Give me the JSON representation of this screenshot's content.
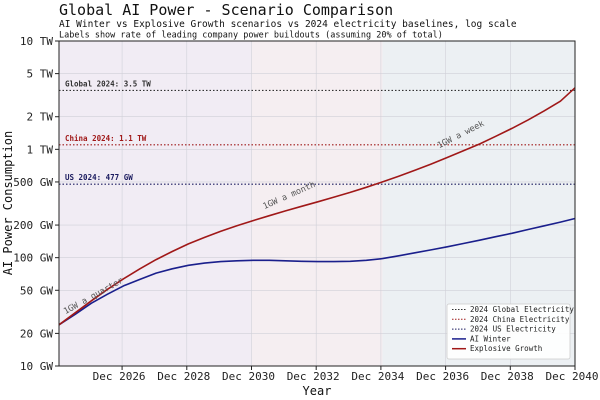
{
  "chart_data": {
    "type": "line",
    "title": "Global AI Power - Scenario Comparison",
    "subtitle": "AI Winter vs Explosive Growth scenarios vs 2024 electricity baselines, log scale",
    "subtitle2": "Labels show rate of leading company power buildouts (assuming 20% of total)",
    "xlabel": "Year",
    "ylabel": "AI Power Consumption",
    "yscale": "log",
    "ylim_gw": [
      10,
      10000
    ],
    "xlim": [
      2025.0,
      2040.95
    ],
    "yticks": [
      {
        "v": 10,
        "label": "10 GW"
      },
      {
        "v": 20,
        "label": "20 GW"
      },
      {
        "v": 50,
        "label": "50 GW"
      },
      {
        "v": 100,
        "label": "100 GW"
      },
      {
        "v": 200,
        "label": "200 GW"
      },
      {
        "v": 500,
        "label": "500 GW"
      },
      {
        "v": 1000,
        "label": "1 TW"
      },
      {
        "v": 2000,
        "label": "2 TW"
      },
      {
        "v": 5000,
        "label": "5 TW"
      },
      {
        "v": 10000,
        "label": "10 TW"
      }
    ],
    "xticks": [
      {
        "v": 2026.95,
        "label": "Dec 2026"
      },
      {
        "v": 2028.95,
        "label": "Dec 2028"
      },
      {
        "v": 2030.95,
        "label": "Dec 2030"
      },
      {
        "v": 2032.95,
        "label": "Dec 2032"
      },
      {
        "v": 2034.95,
        "label": "Dec 2034"
      },
      {
        "v": 2036.95,
        "label": "Dec 2036"
      },
      {
        "v": 2038.95,
        "label": "Dec 2038"
      },
      {
        "v": 2040.95,
        "label": "Dec 2040"
      }
    ],
    "bands": [
      {
        "from": 2025.0,
        "to": 2030.95,
        "color": "#f1ecf4"
      },
      {
        "from": 2030.95,
        "to": 2035.0,
        "color": "#f5eef1"
      },
      {
        "from": 2035.0,
        "to": 2040.95,
        "color": "#ecf0f3"
      }
    ],
    "reference_lines": [
      {
        "name": "2024 Global Electricity",
        "label": "Global 2024: 3.5 TW",
        "value": 3500,
        "color": "#333333"
      },
      {
        "name": "2024 China Electricity",
        "label": "China 2024: 1.1 TW",
        "value": 1100,
        "color": "#a01818"
      },
      {
        "name": "2024 US Electricity",
        "label": "US 2024: 477 GW",
        "value": 477,
        "color": "#1a1a5e"
      }
    ],
    "series": [
      {
        "name": "AI Winter",
        "color": "#1a1f8c",
        "x": [
          2025.0,
          2025.5,
          2026.0,
          2026.5,
          2027.0,
          2027.5,
          2028.0,
          2028.5,
          2029.0,
          2029.5,
          2030.0,
          2030.5,
          2031.0,
          2031.5,
          2032.0,
          2032.5,
          2033.0,
          2033.5,
          2034.0,
          2034.5,
          2035.0,
          2035.5,
          2036.0,
          2036.5,
          2037.0,
          2037.5,
          2038.0,
          2038.5,
          2039.0,
          2039.5,
          2040.0,
          2040.5,
          2040.95
        ],
        "values": [
          24,
          30,
          38,
          46,
          55,
          63,
          72,
          79,
          85,
          89,
          92,
          93.5,
          94.5,
          94.5,
          93.5,
          92.5,
          92,
          92,
          92.5,
          94.5,
          98,
          104,
          111,
          118,
          126,
          135,
          145,
          156,
          168,
          182,
          197,
          213,
          230
        ]
      },
      {
        "name": "Explosive Growth",
        "color": "#a01818",
        "x": [
          2025.0,
          2025.5,
          2026.0,
          2026.5,
          2027.0,
          2027.5,
          2028.0,
          2028.5,
          2029.0,
          2029.5,
          2030.0,
          2030.5,
          2031.0,
          2031.5,
          2032.0,
          2032.5,
          2033.0,
          2033.5,
          2034.0,
          2034.5,
          2035.0,
          2035.5,
          2036.0,
          2036.5,
          2037.0,
          2037.5,
          2038.0,
          2038.5,
          2039.0,
          2039.5,
          2040.0,
          2040.5,
          2040.95
        ],
        "values": [
          24,
          31,
          40,
          51,
          64,
          79,
          96,
          114,
          134,
          154,
          175,
          197,
          220,
          244,
          270,
          298,
          328,
          362,
          400,
          446,
          500,
          565,
          640,
          730,
          840,
          970,
          1120,
          1320,
          1560,
          1870,
          2270,
          2780,
          3700
        ]
      }
    ],
    "annotations": [
      {
        "text": "1GW a quarter",
        "x": 2025.2,
        "y": 30,
        "angle": -29
      },
      {
        "text": "1GW a month",
        "x": 2031.35,
        "y": 280,
        "angle": -24
      },
      {
        "text": "1GW a week",
        "x": 2036.75,
        "y": 1020,
        "angle": -27
      }
    ],
    "legend_position": "lower-right"
  }
}
